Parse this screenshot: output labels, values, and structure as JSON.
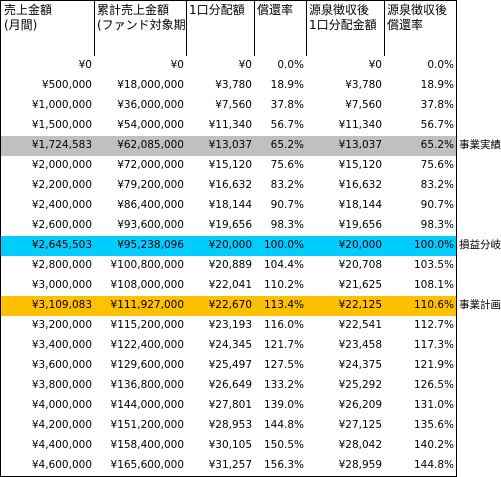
{
  "table": {
    "header": [
      [
        "売上金額",
        "(月間)"
      ],
      [
        "累計売上金額",
        "(ファンド対象期間)"
      ],
      [
        "1口分配額"
      ],
      [
        "償還率"
      ],
      [
        "源泉徴収後",
        "1口分配金額"
      ],
      [
        "源泉徴収後",
        "償還率"
      ]
    ],
    "rows": [
      {
        "cells": [
          "¥0",
          "¥0",
          "¥0",
          "0.0%",
          "¥0",
          "0.0%"
        ]
      },
      {
        "cells": [
          "¥500,000",
          "¥18,000,000",
          "¥3,780",
          "18.9%",
          "¥3,780",
          "18.9%"
        ]
      },
      {
        "cells": [
          "¥1,000,000",
          "¥36,000,000",
          "¥7,560",
          "37.8%",
          "¥7,560",
          "37.8%"
        ]
      },
      {
        "cells": [
          "¥1,500,000",
          "¥54,000,000",
          "¥11,340",
          "56.7%",
          "¥11,340",
          "56.7%"
        ]
      },
      {
        "cells": [
          "¥1,724,583",
          "¥62,085,000",
          "¥13,037",
          "65.2%",
          "¥13,037",
          "65.2%"
        ],
        "label": "事業実績",
        "color": "#c0c0c0"
      },
      {
        "cells": [
          "¥2,000,000",
          "¥72,000,000",
          "¥15,120",
          "75.6%",
          "¥15,120",
          "75.6%"
        ]
      },
      {
        "cells": [
          "¥2,200,000",
          "¥79,200,000",
          "¥16,632",
          "83.2%",
          "¥16,632",
          "83.2%"
        ]
      },
      {
        "cells": [
          "¥2,400,000",
          "¥86,400,000",
          "¥18,144",
          "90.7%",
          "¥18,144",
          "90.7%"
        ]
      },
      {
        "cells": [
          "¥2,600,000",
          "¥93,600,000",
          "¥19,656",
          "98.3%",
          "¥19,656",
          "98.3%"
        ]
      },
      {
        "cells": [
          "¥2,645,503",
          "¥95,238,096",
          "¥20,000",
          "100.0%",
          "¥20,000",
          "100.0%"
        ],
        "label": "損益分岐",
        "color": "#00ccff"
      },
      {
        "cells": [
          "¥2,800,000",
          "¥100,800,000",
          "¥20,889",
          "104.4%",
          "¥20,708",
          "103.5%"
        ]
      },
      {
        "cells": [
          "¥3,000,000",
          "¥108,000,000",
          "¥22,041",
          "110.2%",
          "¥21,625",
          "108.1%"
        ]
      },
      {
        "cells": [
          "¥3,109,083",
          "¥111,927,000",
          "¥22,670",
          "113.4%",
          "¥22,125",
          "110.6%"
        ],
        "label": "事業計画",
        "color": "#ffc000"
      },
      {
        "cells": [
          "¥3,200,000",
          "¥115,200,000",
          "¥23,193",
          "116.0%",
          "¥22,541",
          "112.7%"
        ]
      },
      {
        "cells": [
          "¥3,400,000",
          "¥122,400,000",
          "¥24,345",
          "121.7%",
          "¥23,458",
          "117.3%"
        ]
      },
      {
        "cells": [
          "¥3,600,000",
          "¥129,600,000",
          "¥25,497",
          "127.5%",
          "¥24,375",
          "121.9%"
        ]
      },
      {
        "cells": [
          "¥3,800,000",
          "¥136,800,000",
          "¥26,649",
          "133.2%",
          "¥25,292",
          "126.5%"
        ]
      },
      {
        "cells": [
          "¥4,000,000",
          "¥144,000,000",
          "¥27,801",
          "139.0%",
          "¥26,209",
          "131.0%"
        ]
      },
      {
        "cells": [
          "¥4,200,000",
          "¥151,200,000",
          "¥28,953",
          "144.8%",
          "¥27,125",
          "135.6%"
        ]
      },
      {
        "cells": [
          "¥4,400,000",
          "¥158,400,000",
          "¥30,105",
          "150.5%",
          "¥28,042",
          "140.2%"
        ]
      },
      {
        "cells": [
          "¥4,600,000",
          "¥165,600,000",
          "¥31,257",
          "156.3%",
          "¥28,959",
          "144.8%"
        ]
      }
    ]
  }
}
